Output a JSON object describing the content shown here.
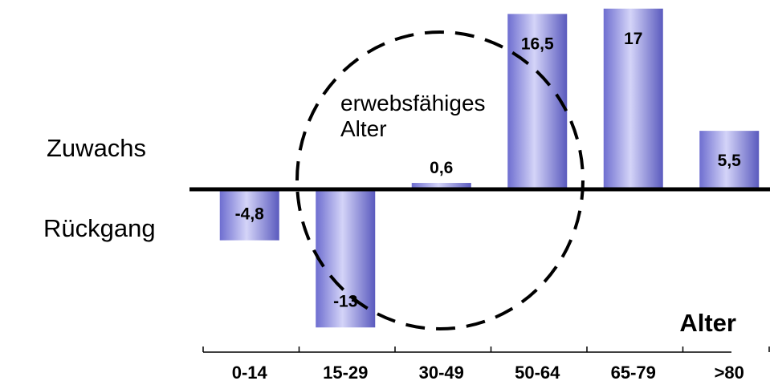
{
  "chart_data": {
    "type": "bar",
    "categories": [
      "0-14",
      "15-29",
      "30-49",
      "50-64",
      "65-79",
      ">80"
    ],
    "values": [
      -4.8,
      -13,
      0.6,
      16.5,
      17,
      5.5
    ],
    "data_labels": [
      "-4,8",
      "-13",
      "0,6",
      "16,5",
      "17",
      "5,5"
    ],
    "xlabel": "Alter",
    "ylim": [
      -13,
      17
    ],
    "positive_label": "Zuwachs",
    "negative_label": "Rückgang",
    "annotation": {
      "text_lines": [
        "erwebsfähiges",
        "Alter"
      ],
      "covers_categories": [
        "15-29",
        "30-49",
        "50-64"
      ],
      "style": "dashed ellipse"
    },
    "grid": false,
    "legend": "none",
    "colors": {
      "bar_light": "#c8c8f4",
      "bar_mid": "#8c8ce0",
      "bar_dark": "#5a5ac0",
      "axis": "#000000"
    }
  }
}
